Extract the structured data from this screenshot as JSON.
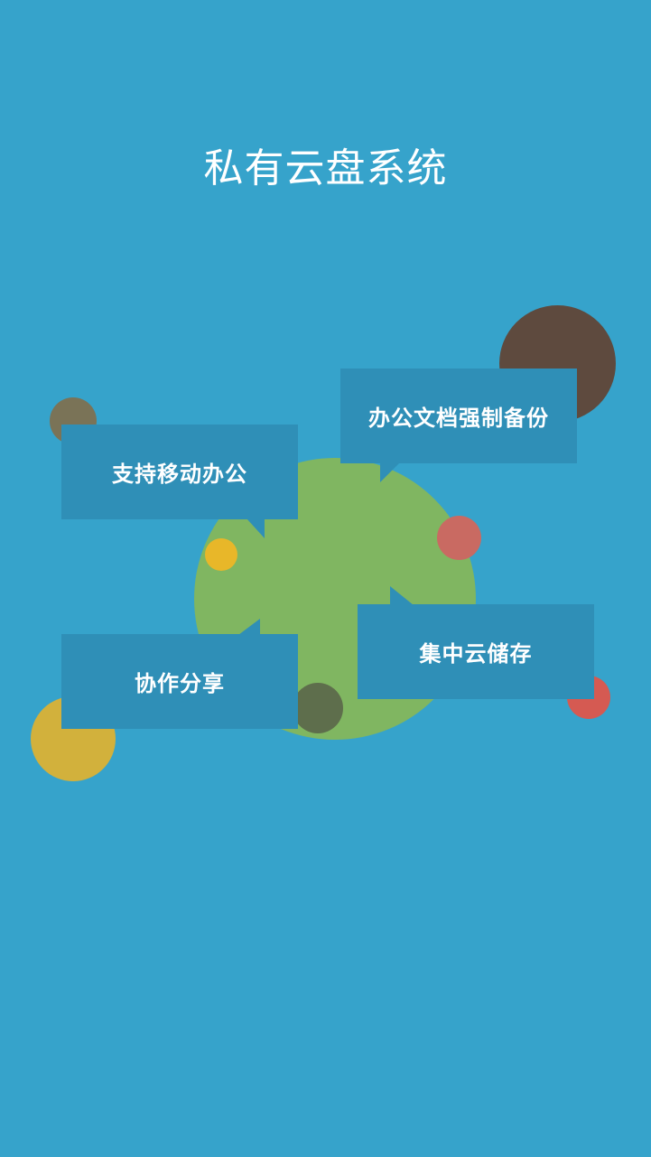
{
  "app": {
    "title": "私有云盘系统"
  },
  "features": [
    {
      "label": "支持移动办公"
    },
    {
      "label": "办公文档强制备份"
    },
    {
      "label": "协作分享"
    },
    {
      "label": "集中云储存"
    }
  ],
  "colors": {
    "background": "#36a3cb",
    "bubble": "#2f8fb7",
    "green_circle": "#80b661",
    "brown_circle": "#5e4a3e",
    "olive_circle": "#7a7357",
    "pink_circle": "#c96a62",
    "yellow_circle": "#e8b729",
    "dark_green_circle": "#5e6e4c",
    "red_circle": "#d55a52",
    "mustard_circle": "#d2b13c",
    "text": "#ffffff"
  }
}
